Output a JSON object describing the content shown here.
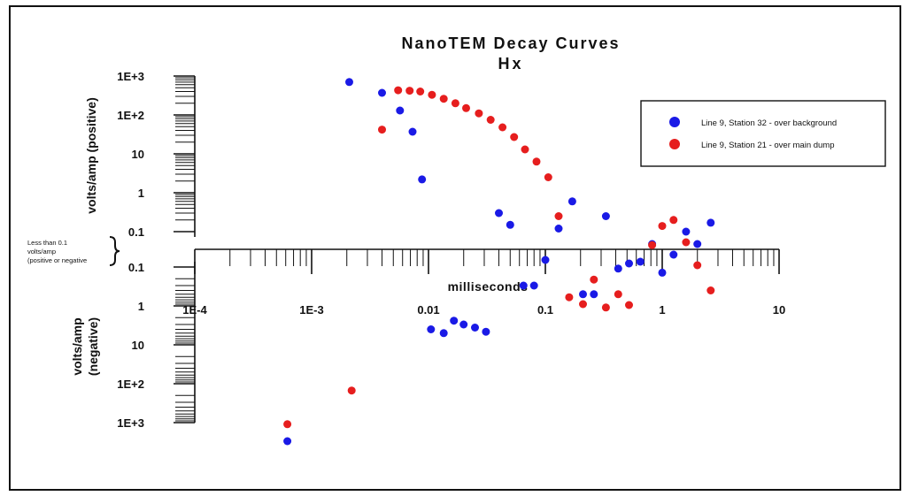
{
  "chart_data": {
    "type": "scatter",
    "title": "NanoTEM Decay Curves",
    "subtitle": "Hx",
    "xlabel": "milliseconds",
    "x_scale": "log",
    "xlim": [
      0.0001,
      10
    ],
    "x_ticks": [
      "1E-4",
      "1E-3",
      "0.01",
      "0.1",
      "1",
      "10"
    ],
    "y_scale": "symmetric log",
    "y_positive_label": "volts/amp (positive)",
    "y_negative_label": "volts/amp (negative)",
    "y_ticks_positive": [
      "1E+3",
      "1E+2",
      "10",
      "1",
      "0.1"
    ],
    "y_ticks_negative": [
      "0.1",
      "1",
      "10",
      "1E+2",
      "1E+3"
    ],
    "threshold_note": [
      "Less than 0.1",
      "volts/amp",
      "(positive or negative"
    ],
    "legend_placement": "top-right",
    "series": [
      {
        "name": "Line 9, Station 32 - over background",
        "color": "#1a1ae6",
        "points": [
          {
            "x": 0.00062,
            "y": -3000
          },
          {
            "x": 0.0021,
            "y": 700
          },
          {
            "x": 0.004,
            "y": 370
          },
          {
            "x": 0.0057,
            "y": 130
          },
          {
            "x": 0.0073,
            "y": 37
          },
          {
            "x": 0.0088,
            "y": 2.2
          },
          {
            "x": 0.0105,
            "y": -4
          },
          {
            "x": 0.0135,
            "y": -5
          },
          {
            "x": 0.0165,
            "y": -2.4
          },
          {
            "x": 0.02,
            "y": -3
          },
          {
            "x": 0.025,
            "y": -3.6
          },
          {
            "x": 0.031,
            "y": -4.6
          },
          {
            "x": 0.04,
            "y": 0.3
          },
          {
            "x": 0.05,
            "y": 0.15
          },
          {
            "x": 0.065,
            "y": -0.3
          },
          {
            "x": 0.08,
            "y": -0.3
          },
          {
            "x": 0.1,
            "y": -0.06
          },
          {
            "x": 0.13,
            "y": 0.12
          },
          {
            "x": 0.17,
            "y": 0.6
          },
          {
            "x": 0.21,
            "y": -0.5
          },
          {
            "x": 0.26,
            "y": -0.5
          },
          {
            "x": 0.33,
            "y": 0.25
          },
          {
            "x": 0.42,
            "y": -0.11
          },
          {
            "x": 0.52,
            "y": -0.08
          },
          {
            "x": 0.65,
            "y": -0.07
          },
          {
            "x": 0.82,
            "y": 0.03
          },
          {
            "x": 1.0,
            "y": -0.14
          },
          {
            "x": 1.25,
            "y": -0.03
          },
          {
            "x": 1.6,
            "y": 0.1
          },
          {
            "x": 2.0,
            "y": 0.03
          },
          {
            "x": 2.6,
            "y": 0.17
          }
        ]
      },
      {
        "name": "Line 9, Station 21 - over main dump",
        "color": "#e61e1e",
        "points": [
          {
            "x": 0.00062,
            "y": -1100
          },
          {
            "x": 0.0022,
            "y": -150
          },
          {
            "x": 0.004,
            "y": 42
          },
          {
            "x": 0.0055,
            "y": 430
          },
          {
            "x": 0.0069,
            "y": 420
          },
          {
            "x": 0.0085,
            "y": 400
          },
          {
            "x": 0.0107,
            "y": 330
          },
          {
            "x": 0.0135,
            "y": 260
          },
          {
            "x": 0.017,
            "y": 200
          },
          {
            "x": 0.021,
            "y": 150
          },
          {
            "x": 0.027,
            "y": 110
          },
          {
            "x": 0.034,
            "y": 75
          },
          {
            "x": 0.043,
            "y": 48
          },
          {
            "x": 0.054,
            "y": 27
          },
          {
            "x": 0.067,
            "y": 13
          },
          {
            "x": 0.084,
            "y": 6.3
          },
          {
            "x": 0.106,
            "y": 2.5
          },
          {
            "x": 0.13,
            "y": 0.25
          },
          {
            "x": 0.16,
            "y": -0.6
          },
          {
            "x": 0.21,
            "y": -0.9
          },
          {
            "x": 0.26,
            "y": -0.21
          },
          {
            "x": 0.33,
            "y": -1.1
          },
          {
            "x": 0.42,
            "y": -0.5
          },
          {
            "x": 0.52,
            "y": -0.95
          },
          {
            "x": 0.82,
            "y": 0.024
          },
          {
            "x": 1.0,
            "y": 0.14
          },
          {
            "x": 1.25,
            "y": 0.2
          },
          {
            "x": 1.6,
            "y": 0.04
          },
          {
            "x": 2.0,
            "y": -0.09
          },
          {
            "x": 2.6,
            "y": -0.4
          }
        ]
      }
    ]
  }
}
